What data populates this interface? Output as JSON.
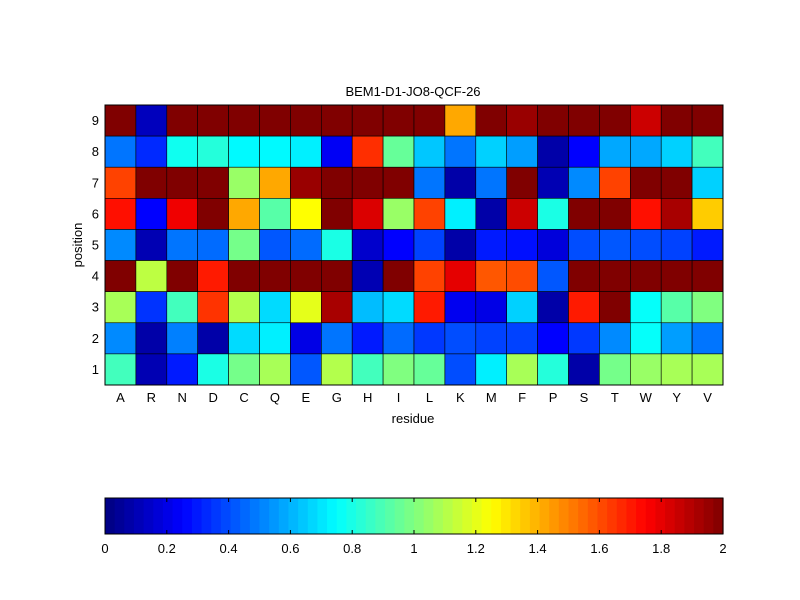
{
  "chart_data": {
    "type": "heatmap",
    "title": "BEM1-D1-JO8-QCF-26",
    "xlabel": "residue",
    "ylabel": "position",
    "x_categories": [
      "A",
      "R",
      "N",
      "D",
      "C",
      "Q",
      "E",
      "G",
      "H",
      "I",
      "L",
      "K",
      "M",
      "F",
      "P",
      "S",
      "T",
      "W",
      "Y",
      "V"
    ],
    "y_categories": [
      "9",
      "8",
      "7",
      "6",
      "5",
      "4",
      "3",
      "2",
      "1"
    ],
    "values": [
      [
        2.0,
        0.12,
        2.0,
        2.0,
        2.0,
        2.0,
        2.0,
        2.0,
        2.0,
        2.0,
        2.0,
        1.42,
        2.0,
        1.95,
        2.0,
        2.0,
        2.0,
        1.85,
        2.0,
        2.0
      ],
      [
        0.48,
        0.33,
        0.78,
        0.82,
        0.74,
        0.74,
        0.72,
        0.23,
        1.66,
        0.95,
        0.64,
        0.48,
        0.66,
        0.56,
        0.08,
        0.25,
        0.58,
        0.58,
        0.66,
        0.88
      ],
      [
        1.62,
        2.0,
        2.0,
        2.0,
        1.05,
        1.42,
        1.95,
        2.0,
        2.0,
        2.0,
        0.48,
        0.08,
        0.48,
        2.0,
        0.1,
        0.52,
        1.62,
        2.0,
        2.0,
        0.66
      ],
      [
        1.72,
        0.25,
        1.78,
        2.0,
        1.42,
        0.92,
        1.25,
        2.0,
        1.82,
        1.05,
        1.62,
        0.72,
        0.08,
        1.85,
        0.8,
        2.0,
        2.0,
        1.72,
        1.92,
        1.35
      ],
      [
        0.52,
        0.1,
        0.48,
        0.46,
        0.98,
        0.42,
        0.46,
        0.8,
        0.15,
        0.25,
        0.38,
        0.08,
        0.3,
        0.28,
        0.18,
        0.4,
        0.42,
        0.4,
        0.38,
        0.3
      ],
      [
        2.0,
        1.12,
        2.0,
        1.7,
        2.0,
        2.0,
        2.0,
        2.0,
        0.1,
        2.0,
        1.62,
        1.8,
        1.58,
        1.6,
        0.42,
        2.0,
        2.0,
        2.0,
        2.0,
        2.0
      ],
      [
        1.08,
        0.35,
        0.88,
        1.65,
        1.1,
        0.68,
        1.2,
        1.92,
        0.62,
        0.68,
        1.7,
        0.22,
        0.2,
        0.66,
        0.08,
        1.7,
        2.0,
        0.76,
        0.92,
        1.0
      ],
      [
        0.52,
        0.08,
        0.5,
        0.08,
        0.68,
        0.72,
        0.2,
        0.48,
        0.3,
        0.46,
        0.36,
        0.4,
        0.38,
        0.38,
        0.25,
        0.36,
        0.52,
        0.76,
        0.56,
        0.48
      ],
      [
        0.88,
        0.1,
        0.3,
        0.8,
        0.98,
        1.08,
        0.42,
        1.1,
        0.88,
        1.0,
        0.95,
        0.4,
        0.72,
        1.08,
        0.82,
        0.08,
        0.98,
        1.05,
        1.08,
        1.08
      ]
    ],
    "colormap": "jet",
    "clim": [
      0,
      2
    ],
    "colorbar": {
      "orientation": "horizontal",
      "ticks": [
        0,
        0.2,
        0.4,
        0.6,
        0.8,
        1,
        1.2,
        1.4,
        1.6,
        1.8,
        2
      ],
      "tick_labels": [
        "0",
        "0.2",
        "0.4",
        "0.6",
        "0.8",
        "1",
        "1.2",
        "1.4",
        "1.6",
        "1.8",
        "2"
      ]
    }
  }
}
